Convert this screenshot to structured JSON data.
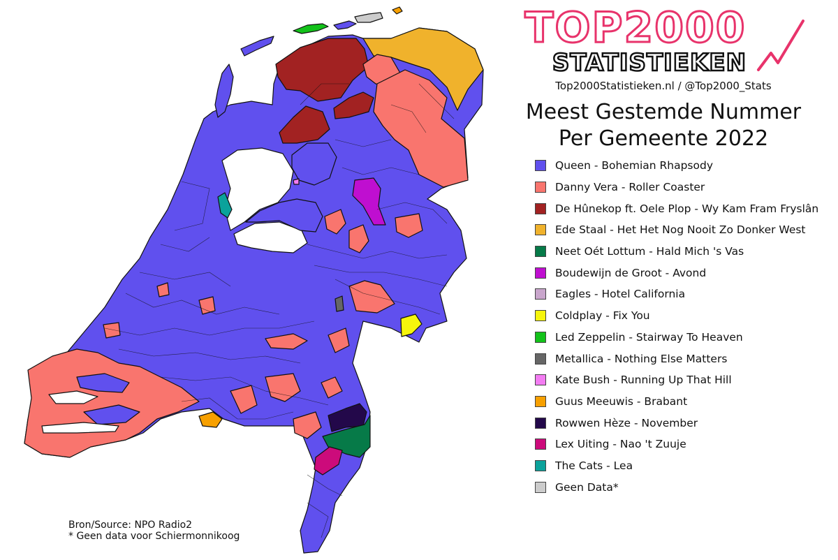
{
  "header": {
    "logo_title": "TOP2000",
    "logo_subtitle": "STATISTIEKEN",
    "site_line": "Top2000Statistieken.nl / @Top2000_Stats",
    "title_line1": "Meest Gestemde Nummer",
    "title_line2": "Per Gemeente 2022"
  },
  "legend": [
    {
      "label": "Queen - Bohemian Rhapsody",
      "color": "#6050ee"
    },
    {
      "label": "Danny Vera - Roller Coaster",
      "color": "#f9756e"
    },
    {
      "label": "De Hûnekop ft. Oele Plop - Wy Kam Fram Fryslân",
      "color": "#a22222"
    },
    {
      "label": "Ede Staal - Het Het Nog Nooit Zo Donker West",
      "color": "#f0b22c"
    },
    {
      "label": "Neet Oét Lottum - Hald Mich 's Vas",
      "color": "#067a48"
    },
    {
      "label": "Boudewijn de Groot - Avond",
      "color": "#bf0fd0"
    },
    {
      "label": "Eagles - Hotel California",
      "color": "#c9a6cc"
    },
    {
      "label": "Coldplay - Fix You",
      "color": "#f6f50c"
    },
    {
      "label": "Led Zeppelin - Stairway To Heaven",
      "color": "#13c21a"
    },
    {
      "label": "Metallica - Nothing Else Matters",
      "color": "#666666"
    },
    {
      "label": "Kate Bush - Running Up That Hill",
      "color": "#f37cf2"
    },
    {
      "label": "Guus Meeuwis - Brabant",
      "color": "#f7a000"
    },
    {
      "label": "Rowwen Hèze - November",
      "color": "#23084a"
    },
    {
      "label": "Lex Uiting - Nao 't Zuuje",
      "color": "#cc0b7b"
    },
    {
      "label": "The Cats - Lea",
      "color": "#0ba29b"
    },
    {
      "label": "Geen Data*",
      "color": "#cccccc"
    }
  ],
  "source": {
    "line1": "Bron/Source: NPO Radio2",
    "line2": "* Geen data voor Schiermonnikoog"
  },
  "colors": {
    "logo_pink": "#e8336b",
    "border": "#111111",
    "water": "#ffffff"
  }
}
